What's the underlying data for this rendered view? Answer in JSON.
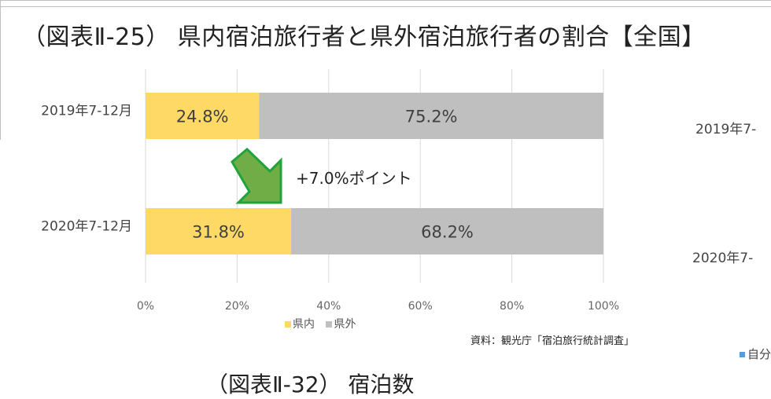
{
  "title": "（図表Ⅱ-25） 県内宿泊旅行者と県外宿泊旅行者の割合【全国】",
  "chart_data": {
    "type": "bar",
    "orientation": "horizontal-stacked-100",
    "categories": [
      "2019年7-12月",
      "2020年7-12月"
    ],
    "series": [
      {
        "name": "県内",
        "values": [
          24.8,
          31.8
        ],
        "labels": [
          "24.8%",
          "31.8%"
        ],
        "color": "#ffd966"
      },
      {
        "name": "県外",
        "values": [
          75.2,
          68.2
        ],
        "labels": [
          "75.2%",
          "68.2%"
        ],
        "color": "#bfbfbf"
      }
    ],
    "xlim": [
      0,
      100
    ],
    "x_ticks": [
      "0%",
      "20%",
      "40%",
      "60%",
      "80%",
      "100%"
    ],
    "grid": true,
    "legend_position": "bottom",
    "annotation": "+7.0%ポイント"
  },
  "legend": {
    "items": [
      {
        "label": "県内",
        "color": "#ffd966"
      },
      {
        "label": "県外",
        "color": "#bfbfbf"
      }
    ]
  },
  "source": "資料：観光庁「宿泊旅行統計調査」",
  "side_chart": {
    "cat1": "2019年7-",
    "cat2": "2020年7-",
    "legend_fragment": "自分"
  },
  "next_section_title": "（図表Ⅱ-32） 宿泊数"
}
